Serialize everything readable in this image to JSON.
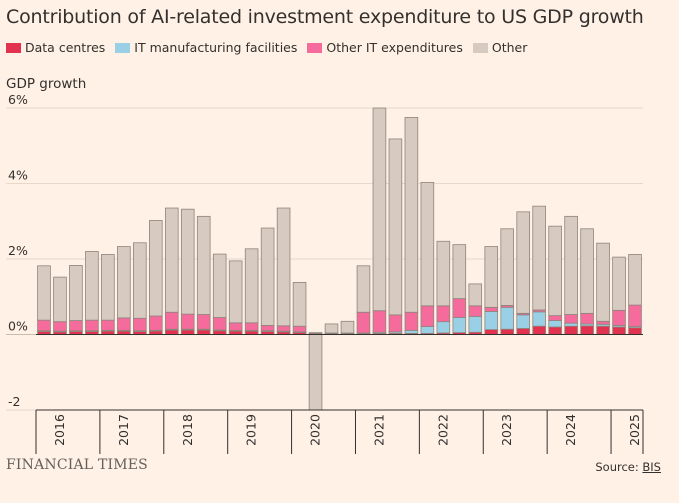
{
  "title": "Contribution of AI-related investment expenditure to US GDP growth",
  "legend": [
    {
      "label": "Data centres",
      "color": "#e3324f"
    },
    {
      "label": "IT manufacturing facilities",
      "color": "#9ad0e6"
    },
    {
      "label": "Other IT expenditures",
      "color": "#f46b9c"
    },
    {
      "label": "Other",
      "color": "#d7cbc1"
    }
  ],
  "footer": {
    "brand": "FINANCIAL TIMES",
    "source_prefix": "Source: ",
    "source_link": "BIS"
  },
  "chart_data": {
    "type": "bar",
    "stacked": true,
    "title": "Contribution of AI-related investment expenditure to US GDP growth",
    "xlabel": "",
    "ylabel": "GDP growth",
    "ylim": [
      -2,
      6
    ],
    "yticks": [
      -2,
      0,
      2,
      4,
      6
    ],
    "ytick_labels": [
      "-2",
      "0%",
      "2%",
      "4%",
      "6%"
    ],
    "year_labels": [
      "2016",
      "2017",
      "2018",
      "2019",
      "2020",
      "2021",
      "2022",
      "2023",
      "2024",
      "2025"
    ],
    "categories": [
      "2016 Q1",
      "2016 Q2",
      "2016 Q3",
      "2016 Q4",
      "2017 Q1",
      "2017 Q2",
      "2017 Q3",
      "2017 Q4",
      "2018 Q1",
      "2018 Q2",
      "2018 Q3",
      "2018 Q4",
      "2019 Q1",
      "2019 Q2",
      "2019 Q3",
      "2019 Q4",
      "2020 Q1",
      "2020 Q2",
      "2020 Q3",
      "2020 Q4",
      "2021 Q1",
      "2021 Q2",
      "2021 Q3",
      "2021 Q4",
      "2022 Q1",
      "2022 Q2",
      "2022 Q3",
      "2022 Q4",
      "2023 Q1",
      "2023 Q2",
      "2023 Q3",
      "2023 Q4",
      "2024 Q1",
      "2024 Q2",
      "2024 Q3",
      "2024 Q4",
      "2025 Q1",
      "2025 Q2"
    ],
    "totals": [
      1.82,
      1.52,
      1.83,
      2.2,
      2.12,
      2.33,
      2.43,
      3.02,
      3.35,
      3.32,
      3.13,
      2.13,
      1.95,
      2.27,
      2.82,
      3.35,
      1.38,
      -2.2,
      0.28,
      0.33,
      1.82,
      6.1,
      5.18,
      5.75,
      4.03,
      2.47,
      2.38,
      1.34,
      2.33,
      2.8,
      3.25,
      3.4,
      2.87,
      3.13,
      2.8,
      2.42,
      2.05,
      2.12
    ],
    "series": [
      {
        "name": "Data centres",
        "color": "#e3324f",
        "values": [
          0.08,
          0.07,
          0.08,
          0.08,
          0.09,
          0.09,
          0.08,
          0.09,
          0.12,
          0.12,
          0.12,
          0.1,
          0.09,
          0.09,
          0.08,
          0.07,
          0.05,
          0.03,
          0.02,
          0.02,
          0.02,
          0.03,
          0.03,
          0.03,
          0.03,
          0.04,
          0.05,
          0.06,
          0.13,
          0.14,
          0.16,
          0.22,
          0.2,
          0.22,
          0.23,
          0.22,
          0.2,
          0.18
        ]
      },
      {
        "name": "IT manufacturing facilities",
        "color": "#9ad0e6",
        "values": [
          0.02,
          0.02,
          0.02,
          0.02,
          0.02,
          0.02,
          0.02,
          0.02,
          0.02,
          0.02,
          0.02,
          0.02,
          0.02,
          0.02,
          0.02,
          0.02,
          0.02,
          0.02,
          0.02,
          0.02,
          0.02,
          0.03,
          0.04,
          0.08,
          0.18,
          0.3,
          0.4,
          0.42,
          0.48,
          0.58,
          0.36,
          0.38,
          0.17,
          0.08,
          0.05,
          0.05,
          0.04,
          0.03
        ]
      },
      {
        "name": "Other IT expenditures",
        "color": "#f46b9c",
        "values": [
          0.28,
          0.25,
          0.27,
          0.28,
          0.27,
          0.33,
          0.33,
          0.38,
          0.45,
          0.4,
          0.39,
          0.33,
          0.2,
          0.2,
          0.14,
          0.14,
          0.15,
          0.0,
          0.0,
          0.0,
          0.55,
          0.57,
          0.45,
          0.48,
          0.55,
          0.42,
          0.5,
          0.28,
          0.11,
          0.05,
          0.04,
          0.05,
          0.13,
          0.23,
          0.28,
          0.08,
          0.4,
          0.57
        ]
      },
      {
        "name": "Other",
        "color": "#d7cbc1",
        "values": [
          1.44,
          1.18,
          1.46,
          1.82,
          1.74,
          1.89,
          2.0,
          2.53,
          2.76,
          2.78,
          2.6,
          1.68,
          1.64,
          1.96,
          2.58,
          3.12,
          1.16,
          -2.25,
          0.24,
          0.31,
          1.23,
          5.47,
          4.66,
          5.16,
          3.27,
          1.71,
          1.43,
          0.58,
          1.61,
          2.03,
          2.69,
          2.75,
          2.37,
          2.6,
          2.24,
          2.07,
          1.41,
          1.34
        ]
      }
    ]
  }
}
